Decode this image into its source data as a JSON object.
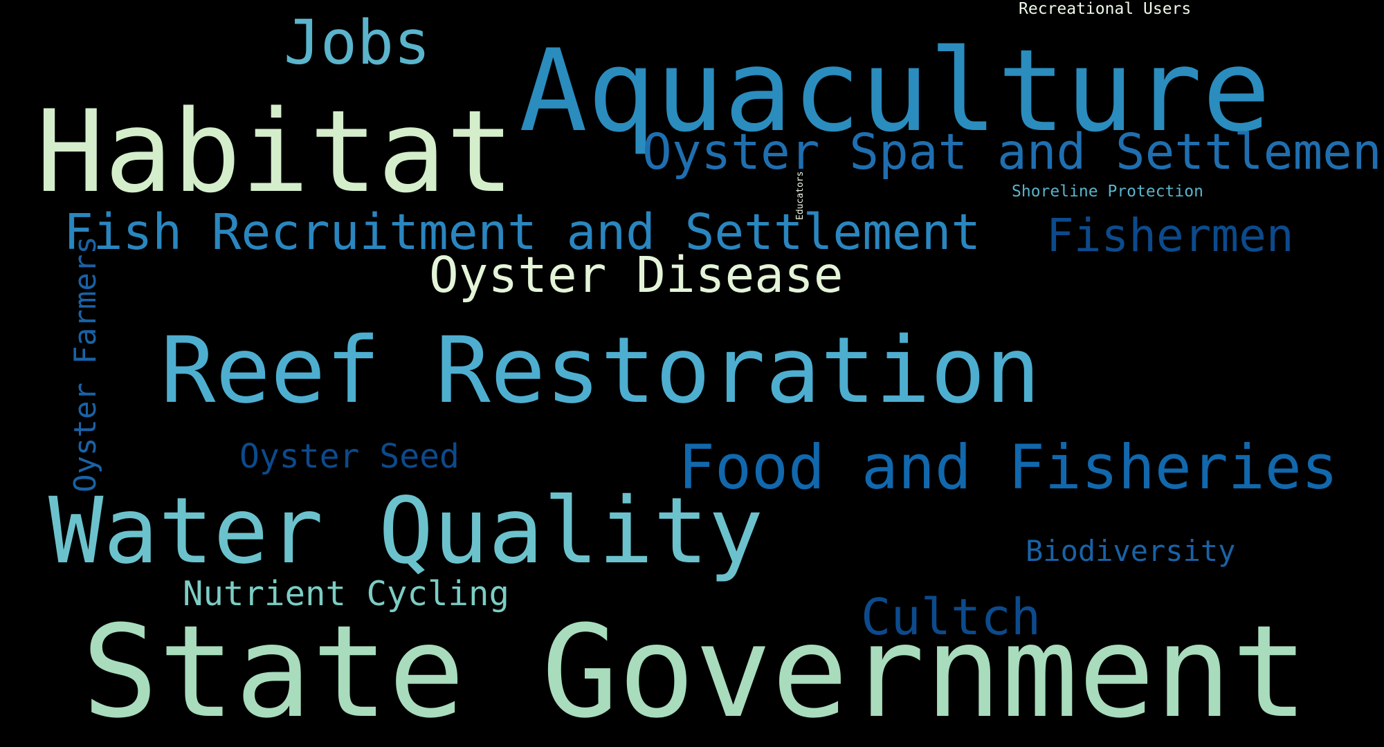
{
  "words": [
    {
      "key": "state_government",
      "text": "State Government",
      "color": "#a8dcbc"
    },
    {
      "key": "aquaculture",
      "text": "Aquaculture",
      "color": "#2b8cbe"
    },
    {
      "key": "habitat",
      "text": "Habitat",
      "color": "#d4eecb"
    },
    {
      "key": "reef_restoration",
      "text": "Reef Restoration",
      "color": "#4eaed0"
    },
    {
      "key": "water_quality",
      "text": "Water Quality",
      "color": "#6cc2cc"
    },
    {
      "key": "food_and_fisheries",
      "text": "Food and Fisheries",
      "color": "#1168ad"
    },
    {
      "key": "fish_recruitment",
      "text": "Fish Recruitment and Settlement",
      "color": "#2a86bf"
    },
    {
      "key": "oyster_spat",
      "text": "Oyster Spat and Settlement",
      "color": "#1f6fb0"
    },
    {
      "key": "jobs",
      "text": "Jobs",
      "color": "#5ab4cc"
    },
    {
      "key": "oyster_disease",
      "text": "Oyster Disease",
      "color": "#e4f4d8"
    },
    {
      "key": "fishermen",
      "text": "Fishermen",
      "color": "#0c4a8c"
    },
    {
      "key": "cultch",
      "text": "Cultch",
      "color": "#0c4a8c"
    },
    {
      "key": "nutrient_cycling",
      "text": "Nutrient Cycling",
      "color": "#7ccdc4"
    },
    {
      "key": "oyster_seed",
      "text": "Oyster Seed",
      "color": "#0c4a8c"
    },
    {
      "key": "biodiversity",
      "text": "Biodiversity",
      "color": "#1a62a6"
    },
    {
      "key": "oyster_farmers",
      "text": "Oyster Farmers",
      "color": "#1a62a6"
    },
    {
      "key": "shoreline_protection",
      "text": "Shoreline Protection",
      "color": "#5ab4cc"
    },
    {
      "key": "recreational_users",
      "text": "Recreational Users",
      "color": "#eef8e8"
    },
    {
      "key": "educators",
      "text": "Educators",
      "color": "#eef8e8"
    }
  ]
}
